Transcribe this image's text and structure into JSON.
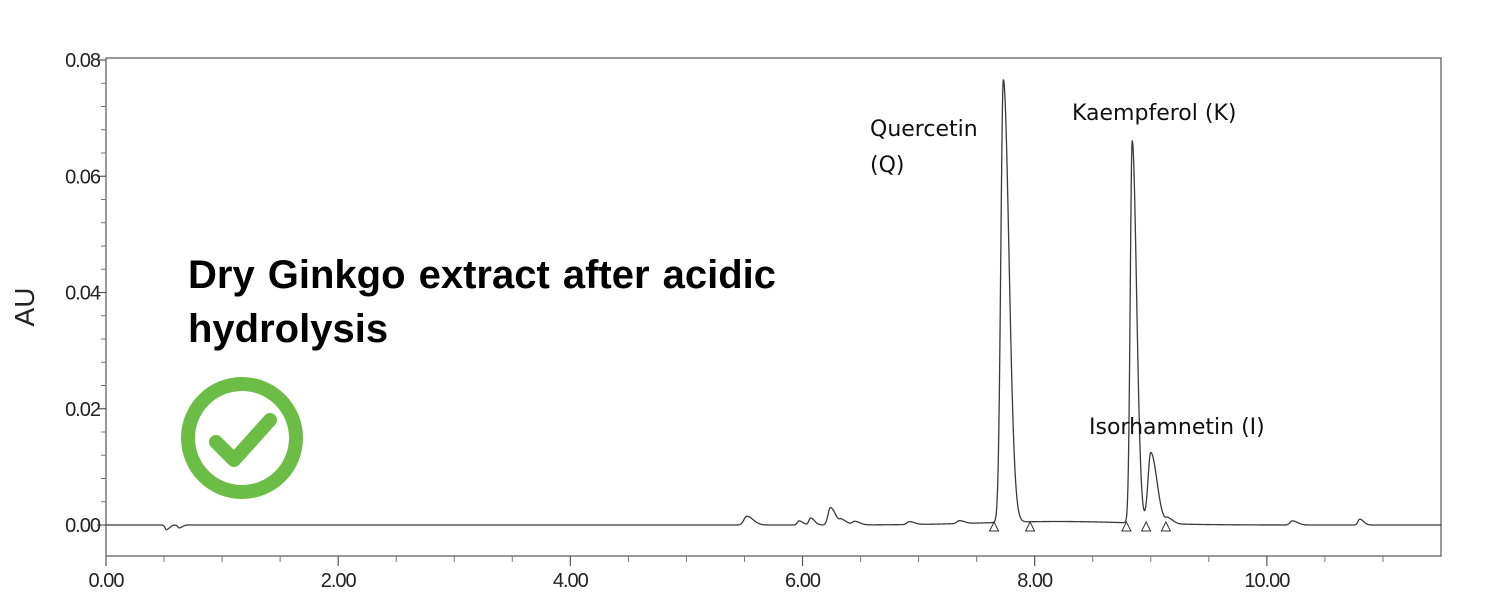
{
  "chart_data": {
    "type": "line",
    "title": "Dry Ginkgo extract after acidic hydrolysis",
    "xlabel": "",
    "ylabel": "AU",
    "xlim": [
      0.0,
      11.5
    ],
    "ylim": [
      -0.005,
      0.08
    ],
    "x_ticks": [
      0,
      2,
      4,
      6,
      8,
      10
    ],
    "x_tick_labels": [
      "0.00",
      "2.00",
      "4.00",
      "6.00",
      "8.00",
      "10.00"
    ],
    "y_ticks": [
      0,
      0.02,
      0.04,
      0.06,
      0.08
    ],
    "y_tick_labels": [
      "0.00",
      "0.02",
      "0.04",
      "0.06",
      "0.08"
    ],
    "baseline": 0.0,
    "peaks": [
      {
        "x": 0.52,
        "y": -0.0008,
        "width": 0.012
      },
      {
        "x": 0.63,
        "y": -0.0005,
        "width": 0.012
      },
      {
        "x": 5.52,
        "y": 0.0015,
        "width": 0.025
      },
      {
        "x": 5.97,
        "y": 0.0007,
        "width": 0.015
      },
      {
        "x": 6.07,
        "y": 0.0012,
        "width": 0.015
      },
      {
        "x": 6.24,
        "y": 0.003,
        "width": 0.02
      },
      {
        "x": 6.34,
        "y": 0.0008,
        "width": 0.02
      },
      {
        "x": 6.45,
        "y": 0.0006,
        "width": 0.02
      },
      {
        "x": 6.92,
        "y": 0.0005,
        "width": 0.02
      },
      {
        "x": 7.35,
        "y": 0.0005,
        "width": 0.02
      },
      {
        "x": 7.73,
        "y": 0.0762,
        "width": 0.022,
        "label": "Quercetin\n(Q)"
      },
      {
        "x": 8.84,
        "y": 0.0658,
        "width": 0.017,
        "label": "Kaempferol (K)"
      },
      {
        "x": 9.0,
        "y": 0.0122,
        "width": 0.024,
        "label": "Isorhamnetin (I)"
      },
      {
        "x": 9.15,
        "y": 0.0009,
        "width": 0.02
      },
      {
        "x": 10.22,
        "y": 0.0007,
        "width": 0.02
      },
      {
        "x": 10.8,
        "y": 0.001,
        "width": 0.015
      }
    ],
    "markers": [
      7.65,
      7.96,
      8.79,
      8.96,
      9.13
    ],
    "grid": false,
    "legend": "none"
  },
  "status_icon": "check-circle-icon",
  "accent_color": "#6cbd45"
}
